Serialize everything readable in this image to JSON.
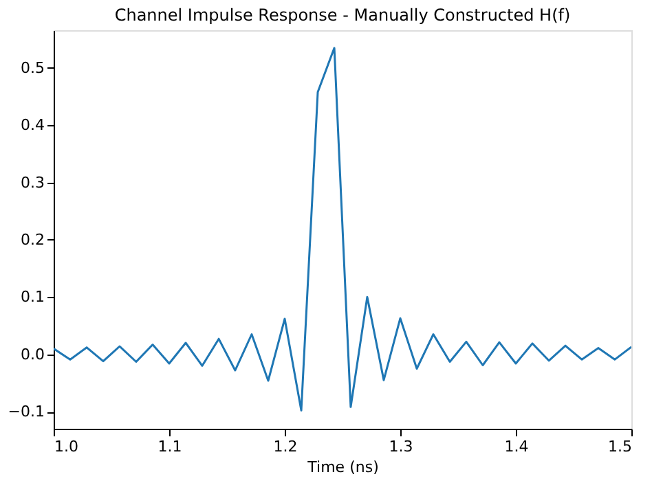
{
  "chart_data": {
    "type": "line",
    "title": "Channel Impulse Response - Manually Constructed H(f)",
    "xlabel": "Time (ns)",
    "x": [
      1.0,
      1.0143,
      1.0286,
      1.0429,
      1.0571,
      1.0714,
      1.0857,
      1.1,
      1.1143,
      1.1286,
      1.1429,
      1.1571,
      1.1714,
      1.1857,
      1.2,
      1.2143,
      1.2286,
      1.2429,
      1.2571,
      1.2714,
      1.2857,
      1.3,
      1.3143,
      1.3286,
      1.3429,
      1.3571,
      1.3714,
      1.3857,
      1.4,
      1.4143,
      1.4286,
      1.4429,
      1.4571,
      1.4714,
      1.4857,
      1.5
    ],
    "series": [
      {
        "color": "#1f77b4",
        "values": [
          0.01,
          -0.009,
          0.012,
          -0.012,
          0.014,
          -0.013,
          0.017,
          -0.016,
          0.02,
          -0.02,
          0.027,
          -0.028,
          0.035,
          -0.046,
          0.062,
          -0.098,
          0.458,
          0.535,
          -0.092,
          0.1,
          -0.045,
          0.063,
          -0.025,
          0.035,
          -0.013,
          0.022,
          -0.019,
          0.021,
          -0.016,
          0.019,
          -0.011,
          0.015,
          -0.009,
          0.011,
          -0.009,
          0.013
        ]
      }
    ],
    "xlim": [
      1.0,
      1.5
    ],
    "xticks": [
      {
        "value": 1,
        "label": "1.0"
      },
      1.1,
      1.2,
      1.3,
      1.4,
      1.5
    ],
    "ylim": [
      -0.13,
      0.566
    ],
    "yticks": [
      -0.1,
      {
        "value": 0,
        "label": "0.0"
      },
      0.1,
      0.2,
      0.3,
      0.4,
      0.5
    ],
    "grid": false,
    "marker": "none",
    "line_style": "solid"
  }
}
